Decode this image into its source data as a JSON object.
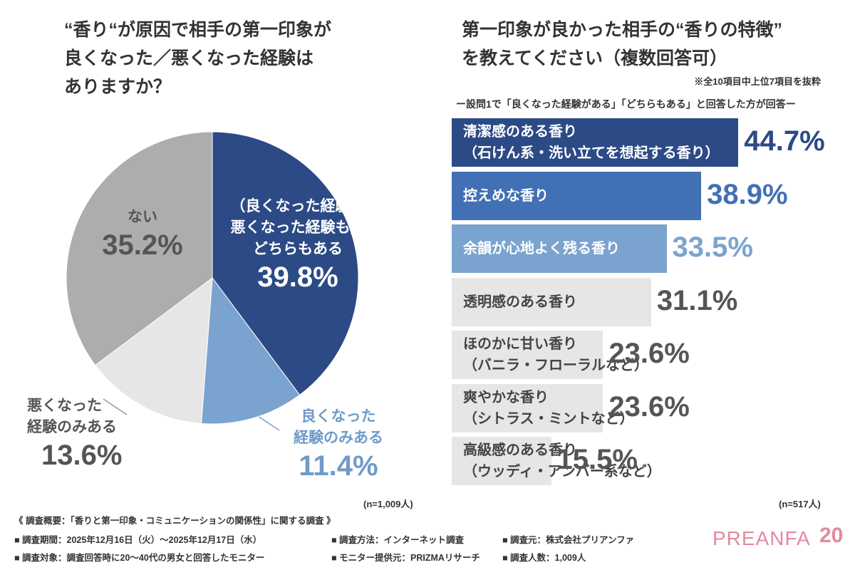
{
  "chart_data": [
    {
      "type": "pie",
      "title": "“香り“が原因で相手の第一印象が\n良くなった／悪くなった経験は\nありますか？",
      "categories": [
        "（良くなった経験も\n悪くなった経験も）\nどちらもある",
        "良くなった\n経験のみある",
        "悪くなった\n経験のみある",
        "ない"
      ],
      "values": [
        39.8,
        11.4,
        13.6,
        35.2
      ],
      "value_labels": [
        "39.8%",
        "11.4%",
        "13.6%",
        "35.2%"
      ],
      "colors": [
        "#2c4a85",
        "#7ba3cf",
        "#e6e6e6",
        "#adadad"
      ],
      "label_colors": [
        "#ffffff",
        "#6f9bc8",
        "#555555",
        "#555555"
      ],
      "note": "(n=1,009人)"
    },
    {
      "type": "hbar",
      "title": "第一印象が良かった相手の“香りの特徴”\nを教えてください（複数回答可）",
      "note": "※全10項目中上位7項目を抜粋",
      "subtitle": "ー設問1で「良くなった経験がある」「どちらもある」と回答した方が回答ー",
      "categories": [
        "清潔感のある香り\n（石けん系・洗い立てを想起する香り）",
        "控えめな香り",
        "余韻が心地よく残る香り",
        "透明感のある香り",
        "ほのかに甘い香り\n（バニラ・フローラルなど）",
        "爽やかな香り\n（シトラス・ミントなど）",
        "高級感のある香り\n（ウッディ・アンバー系など）"
      ],
      "values": [
        44.7,
        38.9,
        33.5,
        31.1,
        23.6,
        23.6,
        15.5
      ],
      "value_labels": [
        "44.7%",
        "38.9%",
        "33.5%",
        "31.1%",
        "23.6%",
        "23.6%",
        "15.5%"
      ],
      "colors": [
        "#2c4a85",
        "#4270b5",
        "#7ba3cf",
        "#e6e6e6",
        "#e6e6e6",
        "#e6e6e6",
        "#e6e6e6"
      ],
      "label_colors": [
        "#2c4a85",
        "#4270b5",
        "#7ba3cf",
        "#555555",
        "#555555",
        "#555555",
        "#555555"
      ],
      "n_label": "(n=517人)"
    }
  ],
  "footer": {
    "heading": "《 調査概要：「香りと第一印象・コミュニケーションの関係性」に関する調査 》",
    "items": [
      "■ 調査期間：2025年12月16日（火）～2025年12月17日（水）",
      "■ 調査方法：インターネット調査",
      "■ 調査元：株式会社プリアンファ",
      "■ 調査対象：調査回答時に20～40代の男女と回答したモニター",
      "■ モニター提供元：PRIZMAリサーチ",
      "■ 調査人数：1,009人"
    ]
  },
  "logo": {
    "name": "PREANFA",
    "badge": "20"
  }
}
